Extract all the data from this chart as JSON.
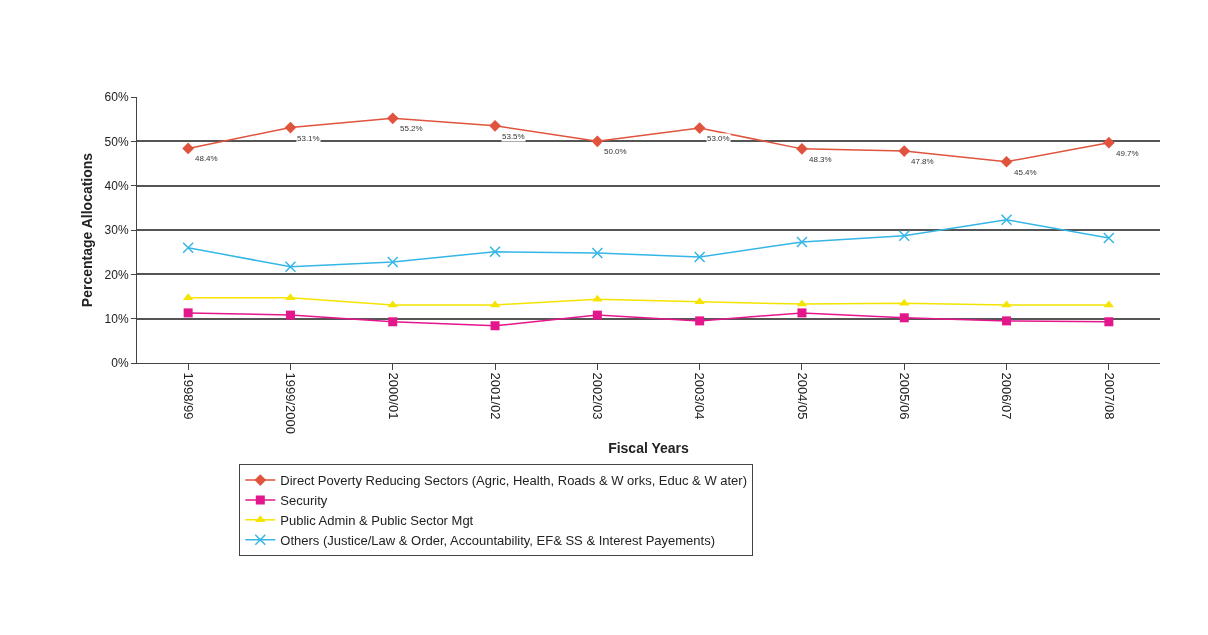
{
  "chart_data": {
    "type": "line",
    "xlabel": "Fiscal Years",
    "ylabel": "Percentage Allocations",
    "categories": [
      "1998/99",
      "1999/2000",
      "2000/01",
      "2001/02",
      "2002/03",
      "2003/04",
      "2004/05",
      "2005/06",
      "2006/07",
      "2007/08"
    ],
    "series": [
      {
        "name": "Direct Poverty Reducing Sectors (Agric, Health, Roads & W orks, Educ & W ater)",
        "color": "#e0533d",
        "marker": "diamond",
        "values": [
          48.4,
          53.1,
          55.2,
          53.5,
          50.0,
          53.0,
          48.3,
          47.8,
          45.4,
          49.7
        ],
        "value_labels": [
          "48.4%",
          "53.1%",
          "55.2%",
          "53.5%",
          "50.0%",
          "53.0%",
          "48.3%",
          "47.8%",
          "45.4%",
          "49.7%"
        ]
      },
      {
        "name": "Security",
        "color": "#e4168c",
        "marker": "square",
        "values": [
          11.3,
          10.8,
          9.3,
          8.4,
          10.8,
          9.5,
          11.3,
          10.2,
          9.5,
          9.3
        ]
      },
      {
        "name": "Public Admin & Public Sector Mgt",
        "color": "#f5e400",
        "marker": "triangle",
        "values": [
          14.7,
          14.7,
          13.1,
          13.1,
          14.4,
          13.8,
          13.3,
          13.5,
          13.1,
          13.1
        ]
      },
      {
        "name": "Others (Justice/Law & Order, Accountability, EF& SS & Interest Payements)",
        "color": "#35b6e6",
        "marker": "cross",
        "values": [
          26.0,
          21.7,
          22.8,
          25.1,
          24.8,
          23.9,
          27.3,
          28.7,
          32.3,
          28.2
        ]
      }
    ],
    "ylim": [
      0,
      60
    ],
    "yticks": [
      {
        "value": 0,
        "label": "0%"
      },
      {
        "value": 10,
        "label": "10%"
      },
      {
        "value": 20,
        "label": "20%"
      },
      {
        "value": 30,
        "label": "30%"
      },
      {
        "value": 40,
        "label": "40%"
      },
      {
        "value": 50,
        "label": "50%"
      },
      {
        "value": 60,
        "label": "60%"
      }
    ],
    "grid": "y",
    "legend": "bottom",
    "line_style": "solid"
  }
}
